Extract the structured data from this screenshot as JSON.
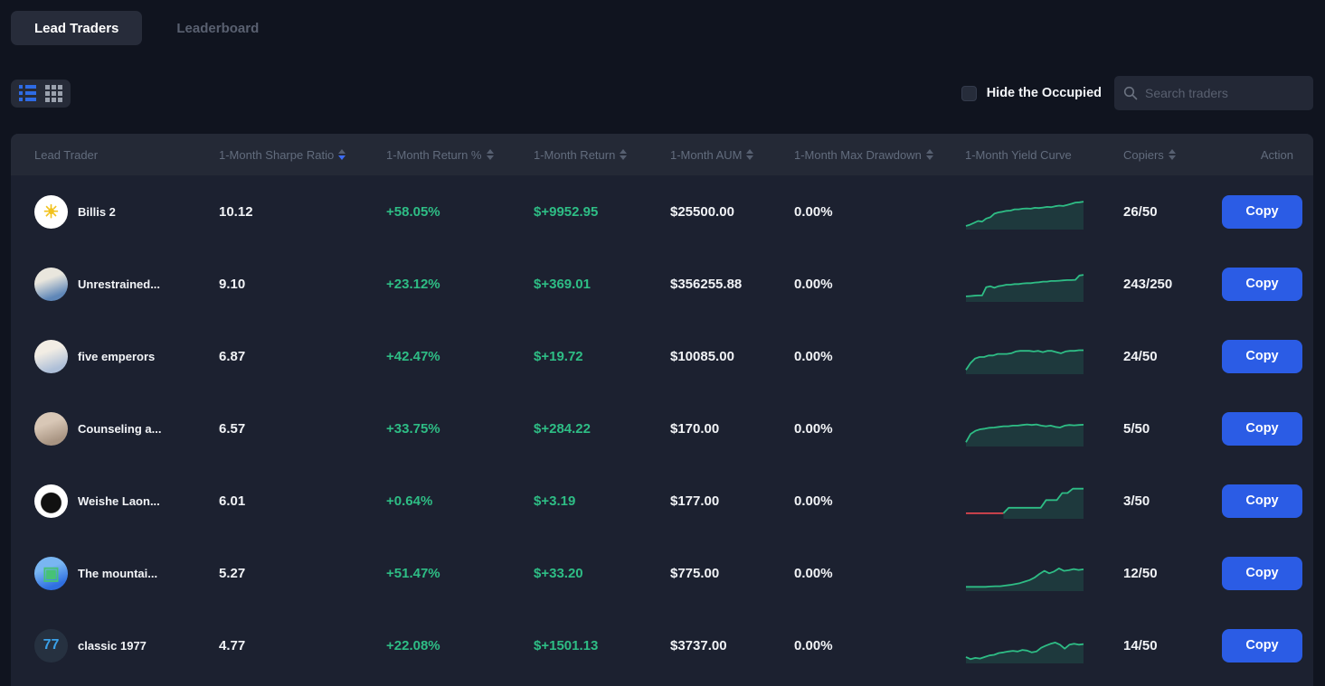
{
  "tabs": {
    "lead_traders": "Lead Traders",
    "leaderboard": "Leaderboard"
  },
  "controls": {
    "hide_occupied_label": "Hide the Occupied",
    "search_placeholder": "Search traders"
  },
  "colors": {
    "positive_green": "#2EBD85",
    "negative_red": "#E0464F",
    "accent_blue": "#2B5CE5",
    "spark_fill": "rgba(46,189,133,0.16)"
  },
  "table": {
    "headers": [
      {
        "label": "Lead Trader",
        "sortable": false,
        "sort": ""
      },
      {
        "label": "1-Month Sharpe Ratio",
        "sortable": true,
        "sort": "desc"
      },
      {
        "label": "1-Month Return %",
        "sortable": true,
        "sort": ""
      },
      {
        "label": "1-Month Return",
        "sortable": true,
        "sort": ""
      },
      {
        "label": "1-Month AUM",
        "sortable": true,
        "sort": ""
      },
      {
        "label": "1-Month Max Drawdown",
        "sortable": true,
        "sort": ""
      },
      {
        "label": "1-Month Yield Curve",
        "sortable": false,
        "sort": ""
      },
      {
        "label": "Copiers",
        "sortable": true,
        "sort": ""
      },
      {
        "label": "Action",
        "sortable": false,
        "sort": ""
      }
    ]
  },
  "rows": [
    {
      "name": "Billis 2",
      "sharpe": "10.12",
      "return_pct": "+58.05%",
      "return_usd": "$+9952.95",
      "aum": "$25500.00",
      "max_drawdown": "0.00%",
      "copiers": "26/50",
      "action_label": "Copy",
      "avatar": {
        "kind": "sun-face",
        "bg1": "#ffffff",
        "bg2": "#ffffff",
        "glyph": "☀",
        "glyph_color": "#f2c21d",
        "text": ""
      },
      "spark": {
        "points": [
          0.06,
          0.1,
          0.16,
          0.22,
          0.2,
          0.3,
          0.34,
          0.46,
          0.5,
          0.52,
          0.55,
          0.56,
          0.6,
          0.6,
          0.62,
          0.63,
          0.62,
          0.65,
          0.64,
          0.66,
          0.68,
          0.67,
          0.7,
          0.72,
          0.71,
          0.74,
          0.78,
          0.82,
          0.83,
          0.85
        ],
        "red_until": 0
      }
    },
    {
      "name": "Unrestrained...",
      "sharpe": "9.10",
      "return_pct": "+23.12%",
      "return_usd": "$+369.01",
      "aum": "$356255.88",
      "max_drawdown": "0.00%",
      "copiers": "243/250",
      "action_label": "Copy",
      "avatar": {
        "kind": "cartoon-cat",
        "bg1": "#e9e6dd",
        "bg2": "#5f87b8",
        "glyph": "",
        "glyph_color": "#27313f",
        "text": ""
      },
      "spark": {
        "points": [
          0.12,
          0.13,
          0.14,
          0.15,
          0.15,
          0.42,
          0.45,
          0.4,
          0.45,
          0.47,
          0.5,
          0.5,
          0.52,
          0.52,
          0.54,
          0.55,
          0.55,
          0.57,
          0.58,
          0.6,
          0.6,
          0.62,
          0.62,
          0.63,
          0.64,
          0.65,
          0.65,
          0.66,
          0.8,
          0.82
        ],
        "red_until": 0
      }
    },
    {
      "name": "five emperors",
      "sharpe": "6.87",
      "return_pct": "+42.47%",
      "return_usd": "$+19.72",
      "aum": "$10085.00",
      "max_drawdown": "0.00%",
      "copiers": "24/50",
      "action_label": "Copy",
      "avatar": {
        "kind": "monk-cartoon",
        "bg1": "#f2ede4",
        "bg2": "#aebfd8",
        "glyph": "",
        "glyph_color": "#5a6a84",
        "text": ""
      },
      "spark": {
        "points": [
          0.08,
          0.3,
          0.45,
          0.5,
          0.5,
          0.55,
          0.55,
          0.6,
          0.6,
          0.6,
          0.62,
          0.68,
          0.7,
          0.7,
          0.7,
          0.68,
          0.7,
          0.66,
          0.7,
          0.7,
          0.66,
          0.62,
          0.68,
          0.7,
          0.7,
          0.72,
          0.72
        ],
        "red_until": 0
      }
    },
    {
      "name": "Counseling a...",
      "sharpe": "6.57",
      "return_pct": "+33.75%",
      "return_usd": "$+284.22",
      "aum": "$170.00",
      "max_drawdown": "0.00%",
      "copiers": "5/50",
      "action_label": "Copy",
      "avatar": {
        "kind": "cat-photo",
        "bg1": "#d8c7b6",
        "bg2": "#a89482",
        "glyph": "",
        "glyph_color": "#6e5d4e",
        "text": ""
      },
      "spark": {
        "points": [
          0.08,
          0.35,
          0.45,
          0.5,
          0.52,
          0.55,
          0.56,
          0.58,
          0.6,
          0.6,
          0.62,
          0.62,
          0.64,
          0.66,
          0.64,
          0.66,
          0.62,
          0.6,
          0.62,
          0.58,
          0.56,
          0.62,
          0.64,
          0.63,
          0.64,
          0.65
        ],
        "red_until": 0
      }
    },
    {
      "name": "Weishe Laon...",
      "sharpe": "6.01",
      "return_pct": "+0.64%",
      "return_usd": "$+3.19",
      "aum": "$177.00",
      "max_drawdown": "0.00%",
      "copiers": "3/50",
      "action_label": "Copy",
      "avatar": {
        "kind": "apple-logo",
        "bg1": "#ffffff",
        "bg2": "#111111",
        "glyph": "",
        "glyph_color": "#111111",
        "text": ""
      },
      "spark": {
        "points": [
          0.12,
          0.12,
          0.12,
          0.12,
          0.12,
          0.12,
          0.12,
          0.12,
          0.3,
          0.3,
          0.3,
          0.3,
          0.3,
          0.3,
          0.3,
          0.55,
          0.55,
          0.55,
          0.78,
          0.78,
          0.92,
          0.92,
          0.92
        ],
        "red_until": 0.33
      }
    },
    {
      "name": "The mountai...",
      "sharpe": "5.27",
      "return_pct": "+51.47%",
      "return_usd": "$+33.20",
      "aum": "$775.00",
      "max_drawdown": "0.00%",
      "copiers": "12/50",
      "action_label": "Copy",
      "avatar": {
        "kind": "robot-cartoon",
        "bg1": "#79b6f2",
        "bg2": "#2f6fe0",
        "glyph": "▣",
        "glyph_color": "#46c276",
        "text": ""
      },
      "spark": {
        "points": [
          0.08,
          0.08,
          0.08,
          0.08,
          0.08,
          0.09,
          0.1,
          0.1,
          0.12,
          0.14,
          0.17,
          0.2,
          0.25,
          0.3,
          0.38,
          0.5,
          0.6,
          0.52,
          0.58,
          0.68,
          0.6,
          0.62,
          0.66,
          0.63,
          0.65
        ],
        "red_until": 0
      }
    },
    {
      "name": "classic 1977",
      "sharpe": "4.77",
      "return_pct": "+22.08%",
      "return_usd": "$+1501.13",
      "aum": "$3737.00",
      "max_drawdown": "0.00%",
      "copiers": "14/50",
      "action_label": "Copy",
      "avatar": {
        "kind": "initials-77",
        "bg1": "#263140",
        "bg2": "#263140",
        "glyph": "",
        "glyph_color": "#3aa0e8",
        "text": "77"
      },
      "spark": {
        "points": [
          0.15,
          0.08,
          0.12,
          0.1,
          0.15,
          0.2,
          0.22,
          0.28,
          0.3,
          0.33,
          0.35,
          0.33,
          0.38,
          0.36,
          0.3,
          0.33,
          0.45,
          0.52,
          0.58,
          0.62,
          0.55,
          0.42,
          0.55,
          0.58,
          0.55,
          0.57
        ],
        "red_until": 0
      }
    }
  ]
}
